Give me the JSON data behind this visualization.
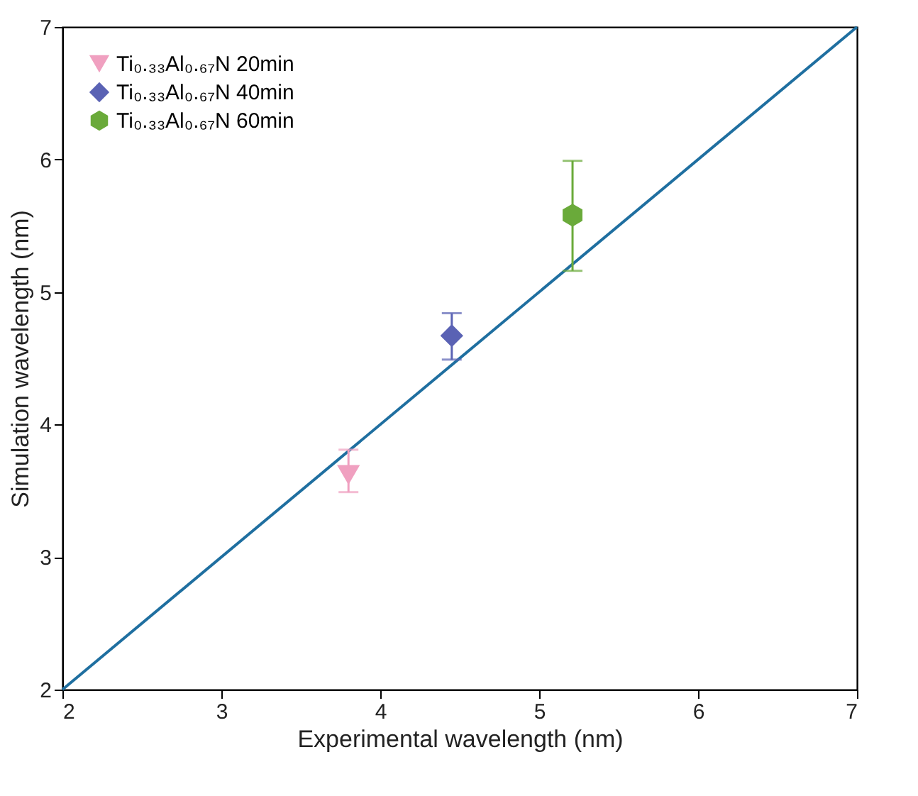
{
  "chart_data": {
    "type": "scatter",
    "xlabel": "Experimental wavelength (nm)",
    "ylabel": "Simulation wavelength (nm)",
    "xlim": [
      2,
      7
    ],
    "xticks": [
      2,
      3,
      4,
      5,
      6,
      7
    ],
    "ylim": [
      2,
      7
    ],
    "yticks": [
      2,
      3,
      4,
      5,
      6,
      7
    ],
    "grid": false,
    "legend": "top left",
    "series": [
      {
        "name": "Ti₀.₃₃Al₀.₆₇N 20min",
        "color": "#f0a0c0",
        "marker": "triangle",
        "x": [
          3.8
        ],
        "values": [
          3.62
        ],
        "errors": [
          [
            3.49,
            3.81
          ]
        ]
      },
      {
        "name": "Ti₀.₃₃Al₀.₆₇N 40min",
        "color": "#5a62b4",
        "marker": "diamond",
        "x": [
          4.45
        ],
        "values": [
          4.67
        ],
        "errors": [
          [
            4.49,
            4.84
          ]
        ]
      },
      {
        "name": "Ti₀.₃₃Al₀.₆₇N 60min",
        "color": "#6aaa3a",
        "x": [
          5.21
        ],
        "values": [
          5.58
        ],
        "errors": [
          [
            5.16,
            5.99
          ]
        ]
      },
      {
        "type": "line",
        "color": "#1f6fa0",
        "x": [
          2,
          7
        ],
        "values": [
          2,
          7
        ],
        "marker": "none",
        "line_style": "solid"
      }
    ]
  }
}
